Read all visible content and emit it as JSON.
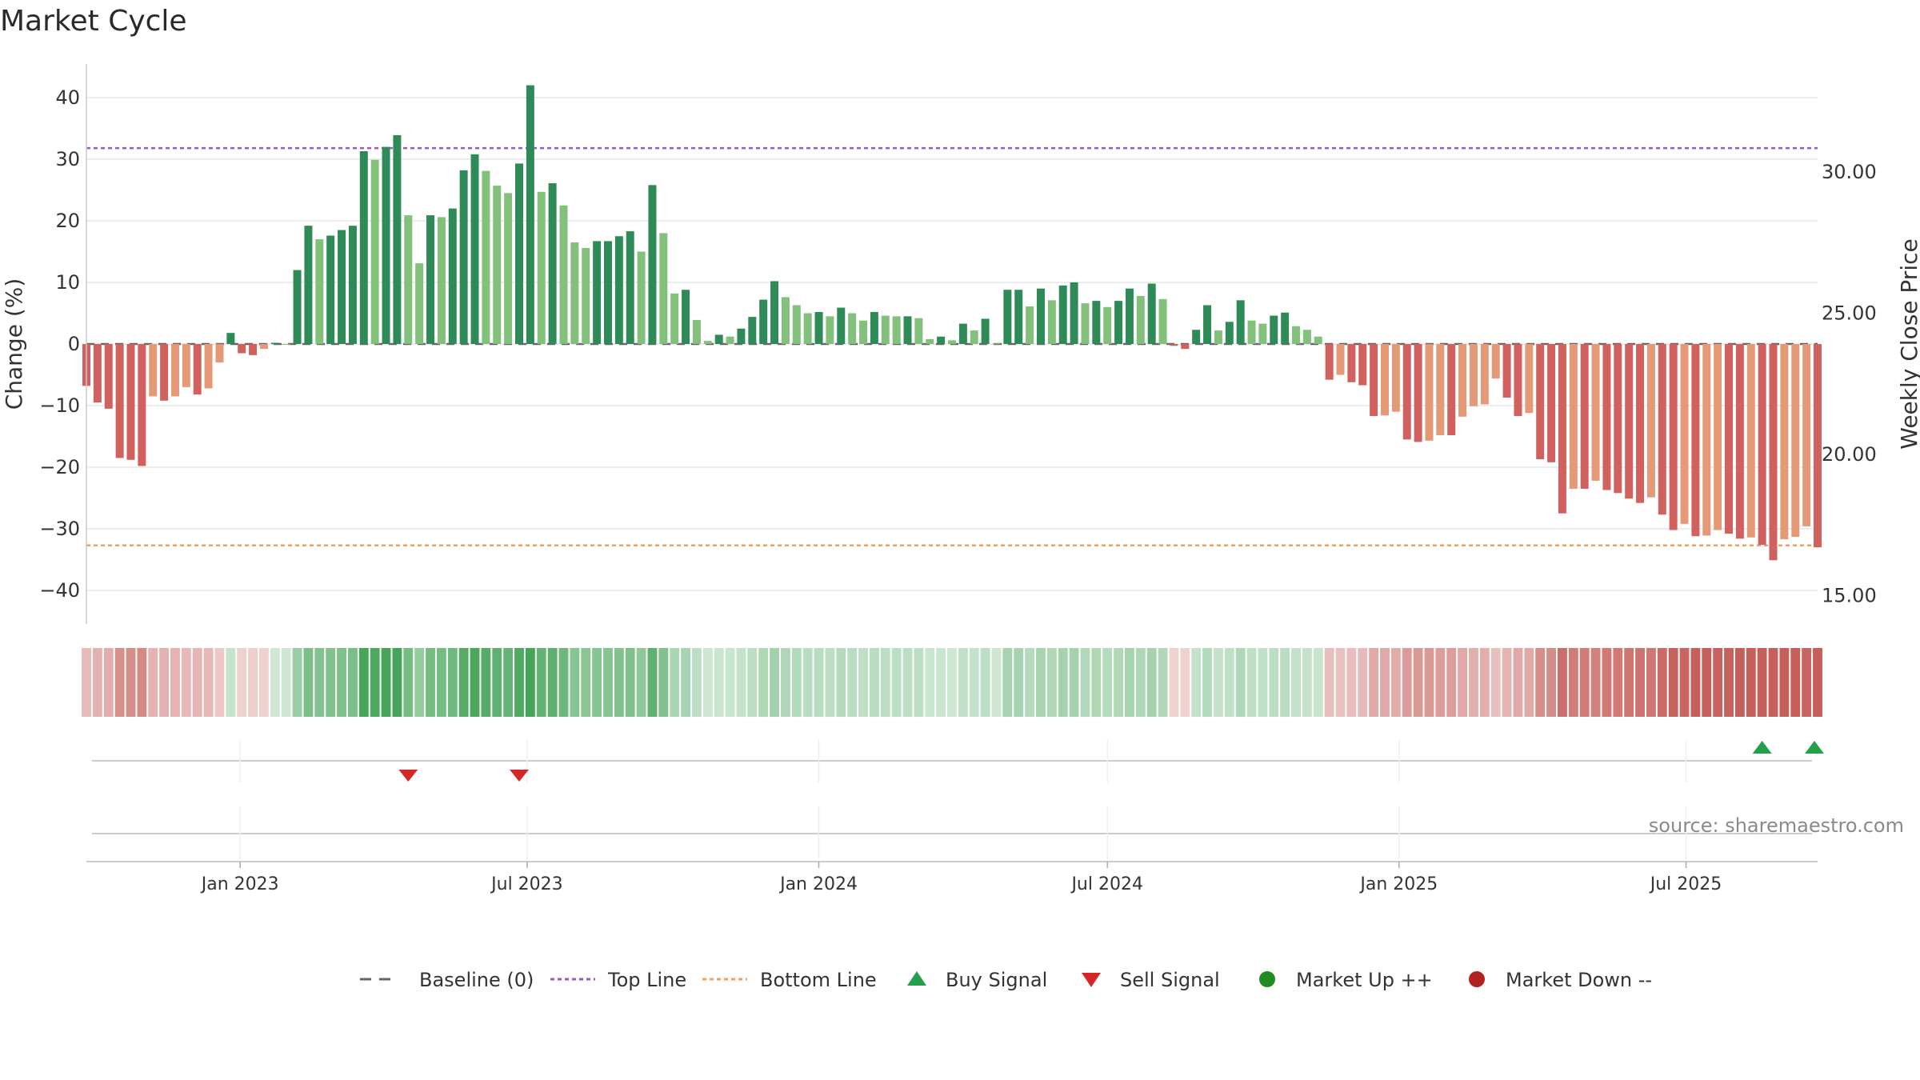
{
  "chart_data": {
    "type": "bar",
    "title": "Market Cycle",
    "ylabel": "Change (%)",
    "y2label": "Weekly Close Price",
    "ylim": [
      -45,
      46
    ],
    "y2lim": [
      14.0,
      31.8
    ],
    "yticks": [
      40,
      30,
      20,
      10,
      0,
      -10,
      -20,
      -30,
      -40
    ],
    "yticks_labels": [
      "40",
      "30",
      "20",
      "10",
      "0",
      "−10",
      "−20",
      "−30",
      "−40"
    ],
    "y2ticks": [
      30.0,
      25.0,
      20.0,
      15.0
    ],
    "y2ticks_labels": [
      "30.00",
      "25.00",
      "20.00",
      "15.00"
    ],
    "x_start": "2022-09-26",
    "x_end": "2025-09-22",
    "xticks": [
      {
        "date": "2023-01-01",
        "label": "Jan 2023"
      },
      {
        "date": "2023-07-01",
        "label": "Jul 2023"
      },
      {
        "date": "2024-01-01",
        "label": "Jan 2024"
      },
      {
        "date": "2024-07-01",
        "label": "Jul 2024"
      },
      {
        "date": "2025-01-01",
        "label": "Jan 2025"
      },
      {
        "date": "2025-07-01",
        "label": "Jul 2025"
      }
    ],
    "values": [
      -6.8,
      -9.5,
      -10.5,
      -18.5,
      -18.8,
      -19.8,
      -8.5,
      -9.2,
      -8.5,
      -7.0,
      -8.2,
      -7.2,
      -3.0,
      1.8,
      -1.5,
      -1.8,
      -0.8,
      0.2,
      0.0,
      12.0,
      19.2,
      17.0,
      17.6,
      18.5,
      19.2,
      31.3,
      29.9,
      32.0,
      33.9,
      20.9,
      13.1,
      20.9,
      20.6,
      22.0,
      28.2,
      30.8,
      28.1,
      25.7,
      24.5,
      29.3,
      42.0,
      24.7,
      26.1,
      22.5,
      16.5,
      15.6,
      16.7,
      16.7,
      17.5,
      18.3,
      15.0,
      25.8,
      18.0,
      8.2,
      8.8,
      3.9,
      0.5,
      1.5,
      1.2,
      2.5,
      4.4,
      7.2,
      10.2,
      7.6,
      6.3,
      5.0,
      5.2,
      4.5,
      5.9,
      5.0,
      3.8,
      5.2,
      4.6,
      4.5,
      4.5,
      4.2,
      0.8,
      1.2,
      0.6,
      3.3,
      2.2,
      4.1,
      0.1,
      8.8,
      8.8,
      6.1,
      9.0,
      7.1,
      9.5,
      10.0,
      6.6,
      7.0,
      6.0,
      7.0,
      9.0,
      7.8,
      9.8,
      7.3,
      -0.3,
      -0.8,
      2.3,
      6.3,
      2.2,
      3.6,
      7.1,
      3.8,
      3.3,
      4.6,
      5.1,
      2.9,
      2.3,
      1.2,
      -5.8,
      -5.0,
      -6.2,
      -6.7,
      -11.7,
      -11.6,
      -11.0,
      -15.5,
      -15.9,
      -15.7,
      -14.8,
      -14.8,
      -11.8,
      -10.1,
      -9.8,
      -5.6,
      -8.7,
      -11.7,
      -11.2,
      -18.7,
      -19.2,
      -27.5,
      -23.5,
      -23.5,
      -22.2,
      -23.7,
      -24.2,
      -25.1,
      -25.8,
      -24.9,
      -27.7,
      -30.2,
      -29.2,
      -31.2,
      -31.1,
      -30.2,
      -30.8,
      -31.6,
      -31.4,
      -32.6,
      -35.1,
      -31.7,
      -31.3,
      -29.6,
      -33.0
    ],
    "reference_lines": {
      "baseline": 0,
      "top_line": 31.8,
      "bottom_line": -32.7
    },
    "buy_signals": [
      "2025-08-18",
      "2025-09-22"
    ],
    "sell_signals": [
      "2023-04-17",
      "2023-06-26"
    ],
    "market_up": [],
    "market_down": [],
    "grid": true,
    "legend_position": "bottom-center",
    "colors": {
      "strong_up": "#2e8b57",
      "weak_up": "#82c07c",
      "weak_down": "#e59a77",
      "strong_down": "#d0615f",
      "baseline": "#666666",
      "top_line": "#9b59c6",
      "bottom_line": "#f0a060",
      "buy": "#22a04a",
      "sell": "#d62728",
      "market_up": "#228b22",
      "market_down": "#b22222",
      "grid": "#e6e6e6"
    }
  },
  "source": "source: sharemaestro.com",
  "legend": [
    {
      "key": "baseline",
      "label": "Baseline (0)",
      "symbol": "dash",
      "color": "#666666"
    },
    {
      "key": "top",
      "label": "Top Line",
      "symbol": "dot-line",
      "color": "#9b59c6"
    },
    {
      "key": "bottom",
      "label": "Bottom Line",
      "symbol": "dot-line",
      "color": "#f0a060"
    },
    {
      "key": "buy",
      "label": "Buy Signal",
      "symbol": "triangle-up",
      "color": "#22a04a"
    },
    {
      "key": "sell",
      "label": "Sell Signal",
      "symbol": "triangle-down",
      "color": "#d62728"
    },
    {
      "key": "mup",
      "label": "Market Up ++",
      "symbol": "circle",
      "color": "#228b22"
    },
    {
      "key": "mdown",
      "label": "Market Down --",
      "symbol": "circle",
      "color": "#b22222"
    }
  ]
}
